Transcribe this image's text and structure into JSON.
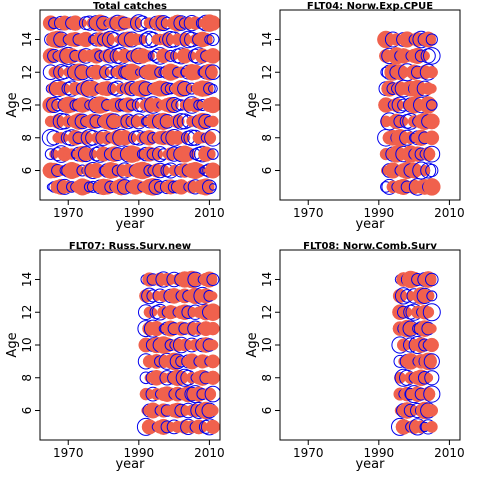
{
  "colors": {
    "positive": "#0000ee",
    "negative": "#f0614d",
    "frame": "#000000"
  },
  "chart_data": [
    {
      "type": "bubble",
      "title": "Total catches",
      "xlabel": "year",
      "ylabel": "Age",
      "xlim": [
        1962,
        2013
      ],
      "ylim": [
        4.2,
        15.8
      ],
      "xticks": [
        1970,
        1990,
        2010
      ],
      "xtick_labels": [
        "1970",
        "1990",
        "2010"
      ],
      "yticks": [
        6,
        8,
        10,
        12,
        14
      ],
      "ytick_labels": [
        "6",
        "8",
        "10",
        "12",
        "14"
      ],
      "ages": [
        5,
        6,
        7,
        8,
        9,
        10,
        11,
        12,
        13,
        14,
        15
      ],
      "years": [
        1965,
        2011
      ],
      "size_scale": [
        0.4,
        1.0,
        1.6,
        2.2,
        2.0,
        1.3,
        1.0,
        0.8,
        1.5,
        2.5,
        1.8,
        0.9,
        1.1,
        0.6,
        1.7,
        2.3,
        2.0,
        1.2,
        0.7,
        1.6,
        2.4,
        1.9,
        1.0,
        1.4,
        2.1,
        1.5,
        0.8,
        1.3,
        2.2,
        2.6,
        2.0,
        1.1,
        0.9,
        1.6,
        1.9,
        1.2,
        1.4,
        2.0,
        1.0,
        0.7,
        1.5,
        1.8,
        1.3,
        2.0,
        2.5,
        1.7
      ],
      "sign_pattern": [
        1,
        1,
        -1,
        -1,
        1,
        -1,
        1,
        1,
        -1,
        -1,
        -1,
        1,
        1,
        -1,
        1,
        -1,
        -1,
        1,
        1,
        -1,
        -1,
        1,
        -1,
        1,
        -1,
        -1,
        1,
        -1,
        -1,
        -1,
        1,
        1,
        -1,
        1,
        -1,
        1,
        1,
        -1,
        -1,
        1,
        -1,
        1,
        -1,
        -1,
        -1,
        1
      ],
      "max_r": 8.5
    },
    {
      "type": "bubble",
      "title": "FLT04:    Norw.Exp.CPUE",
      "xlabel": "year",
      "ylabel": "Age",
      "xlim": [
        1962,
        2013
      ],
      "ylim": [
        4.2,
        15.8
      ],
      "xticks": [
        1970,
        1990,
        2010
      ],
      "xtick_labels": [
        "1970",
        "1990",
        "2010"
      ],
      "yticks": [
        6,
        8,
        10,
        12,
        14
      ],
      "ytick_labels": [
        "6",
        "8",
        "10",
        "12",
        "14"
      ],
      "ages": [
        5,
        6,
        7,
        8,
        9,
        10,
        11,
        12,
        13,
        14
      ],
      "years": [
        1992,
        2005
      ],
      "size_scale": [
        0.9,
        1.8,
        1.2,
        0.7,
        1.5,
        2.0,
        1.1,
        0.8,
        1.6,
        2.2,
        1.4,
        1.9,
        1.0,
        2.3
      ],
      "sign_pattern": [
        1,
        1,
        -1,
        1,
        -1,
        -1,
        1,
        -1,
        -1,
        1,
        -1,
        -1,
        1,
        -1
      ],
      "max_r": 8.5
    },
    {
      "type": "bubble",
      "title": "FLT07:    Russ.Surv.new",
      "xlabel": "year",
      "ylabel": "Age",
      "xlim": [
        1962,
        2013
      ],
      "ylim": [
        4.2,
        15.8
      ],
      "xticks": [
        1970,
        1990,
        2010
      ],
      "xtick_labels": [
        "1970",
        "1990",
        "2010"
      ],
      "yticks": [
        6,
        8,
        10,
        12,
        14
      ],
      "ytick_labels": [
        "6",
        "8",
        "10",
        "12",
        "14"
      ],
      "ages": [
        5,
        6,
        7,
        8,
        9,
        10,
        11,
        12,
        13,
        14
      ],
      "years": [
        1992,
        2011
      ],
      "size_scale": [
        2.4,
        1.8,
        1.0,
        0.6,
        1.4,
        2.0,
        1.2,
        0.8,
        1.6,
        1.1,
        0.7,
        1.5,
        1.9,
        1.3,
        0.9,
        1.7,
        1.0,
        1.4,
        2.1,
        1.6
      ],
      "sign_pattern": [
        1,
        -1,
        -1,
        1,
        -1,
        -1,
        1,
        -1,
        1,
        -1,
        -1,
        -1,
        1,
        -1,
        1,
        -1,
        -1,
        1,
        1,
        -1
      ],
      "max_r": 8.5
    },
    {
      "type": "bubble",
      "title": "FLT08:    Norw.Comb.Surv",
      "xlabel": "year",
      "ylabel": "Age",
      "xlim": [
        1962,
        2013
      ],
      "ylim": [
        4.2,
        15.8
      ],
      "xticks": [
        1970,
        1990,
        2010
      ],
      "xtick_labels": [
        "1970",
        "1990",
        "2010"
      ],
      "yticks": [
        6,
        8,
        10,
        12,
        14
      ],
      "ytick_labels": [
        "6",
        "8",
        "10",
        "12",
        "14"
      ],
      "ages": [
        5,
        6,
        7,
        8,
        9,
        10,
        11,
        12,
        13,
        14
      ],
      "years": [
        1996,
        2005
      ],
      "size_scale": [
        2.0,
        1.6,
        1.0,
        0.7,
        1.3,
        1.8,
        1.1,
        0.6,
        1.4,
        0.9
      ],
      "sign_pattern": [
        1,
        -1,
        -1,
        1,
        -1,
        1,
        -1,
        1,
        1,
        -1
      ],
      "max_r": 8.5
    }
  ]
}
